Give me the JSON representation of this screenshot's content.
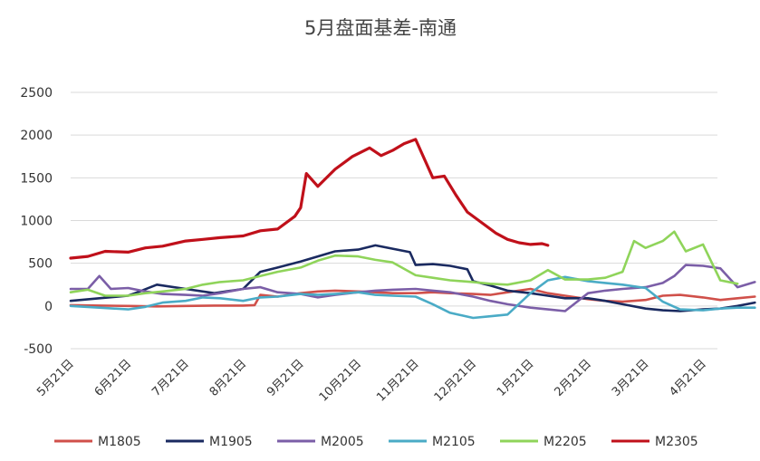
{
  "chart_data": {
    "type": "line",
    "title": "5月盘面基差-南通",
    "xlabel": "",
    "ylabel": "",
    "ylim": [
      -500,
      2500
    ],
    "yticks": [
      -500,
      0,
      500,
      1000,
      1500,
      2000,
      2500
    ],
    "categories": [
      "5月21日",
      "6月21日",
      "7月21日",
      "8月21日",
      "9月21日",
      "10月21日",
      "11月21日",
      "12月21日",
      "1月21日",
      "2月21日",
      "3月21日",
      "4月21日"
    ],
    "grid": "horizontal",
    "legend_position": "bottom",
    "series": [
      {
        "name": "M1805",
        "color": "#d0504a",
        "x": [
          0,
          0.5,
          1,
          1.5,
          2,
          2.5,
          3,
          3.2,
          3.3,
          3.6,
          4,
          4.3,
          4.6,
          5,
          5.3,
          5.6,
          6,
          6.3,
          6.6,
          7,
          7.3,
          7.6,
          8,
          8.3,
          8.6,
          9,
          9.3,
          9.6,
          10,
          10.3,
          10.6,
          11,
          11.3,
          11.6,
          11.9
        ],
        "y": [
          10,
          5,
          0,
          -5,
          0,
          5,
          5,
          10,
          130,
          110,
          150,
          170,
          180,
          170,
          160,
          150,
          150,
          160,
          150,
          140,
          130,
          160,
          200,
          150,
          120,
          80,
          60,
          50,
          70,
          120,
          130,
          100,
          70,
          90,
          110
        ]
      },
      {
        "name": "M1905",
        "color": "#1a2a60",
        "x": [
          0,
          0.5,
          1,
          1.2,
          1.5,
          2,
          2.5,
          3,
          3.3,
          3.6,
          4,
          4.3,
          4.6,
          5,
          5.3,
          5.6,
          5.9,
          6,
          6.3,
          6.6,
          6.9,
          7,
          7.3,
          7.6,
          8,
          8.3,
          8.6,
          9,
          9.3,
          9.6,
          10,
          10.3,
          10.6,
          11,
          11.3,
          11.6,
          11.9
        ],
        "y": [
          60,
          90,
          120,
          170,
          250,
          200,
          150,
          200,
          400,
          450,
          520,
          580,
          640,
          660,
          710,
          670,
          630,
          480,
          490,
          470,
          430,
          290,
          240,
          180,
          150,
          120,
          90,
          90,
          60,
          20,
          -30,
          -50,
          -60,
          -40,
          -30,
          0,
          40
        ]
      },
      {
        "name": "M2005",
        "color": "#7b5ea7",
        "x": [
          0,
          0.3,
          0.5,
          0.7,
          1,
          1.3,
          1.6,
          2,
          2.3,
          2.6,
          3,
          3.3,
          3.6,
          4,
          4.3,
          4.6,
          5,
          5.3,
          5.6,
          6,
          6.3,
          6.6,
          7,
          7.3,
          7.6,
          8,
          8.3,
          8.6,
          9,
          9.3,
          9.6,
          10,
          10.3,
          10.5,
          10.7,
          11,
          11.3,
          11.6,
          11.9
        ],
        "y": [
          200,
          200,
          350,
          200,
          210,
          170,
          140,
          130,
          120,
          150,
          200,
          220,
          160,
          140,
          100,
          130,
          160,
          180,
          190,
          200,
          180,
          160,
          110,
          60,
          20,
          -20,
          -40,
          -60,
          150,
          180,
          200,
          220,
          270,
          350,
          480,
          470,
          440,
          220,
          280
        ]
      },
      {
        "name": "M2105",
        "color": "#4aabc6",
        "x": [
          0,
          0.5,
          1,
          1.3,
          1.6,
          2,
          2.3,
          2.6,
          3,
          3.3,
          3.6,
          4,
          4.3,
          4.6,
          5,
          5.3,
          5.6,
          6,
          6.3,
          6.6,
          7,
          7.3,
          7.6,
          8,
          8.3,
          8.6,
          9,
          9.3,
          9.6,
          10,
          10.3,
          10.6,
          11,
          11.3,
          11.6,
          11.9
        ],
        "y": [
          0,
          -20,
          -40,
          -10,
          40,
          60,
          100,
          90,
          60,
          100,
          110,
          140,
          130,
          140,
          160,
          130,
          120,
          110,
          20,
          -80,
          -140,
          -120,
          -100,
          150,
          300,
          340,
          290,
          270,
          250,
          210,
          50,
          -40,
          -50,
          -30,
          -20,
          -20
        ]
      },
      {
        "name": "M2205",
        "color": "#8fd45a",
        "x": [
          0,
          0.3,
          0.6,
          1,
          1.3,
          1.6,
          2,
          2.3,
          2.6,
          3,
          3.3,
          3.6,
          4,
          4.3,
          4.6,
          5,
          5.3,
          5.6,
          6,
          6.3,
          6.6,
          7,
          7.3,
          7.6,
          8,
          8.3,
          8.6,
          9,
          9.3,
          9.6,
          9.8,
          10,
          10.3,
          10.5,
          10.7,
          11,
          11.3,
          11.6
        ],
        "y": [
          160,
          190,
          120,
          120,
          150,
          170,
          200,
          250,
          280,
          300,
          350,
          400,
          450,
          530,
          590,
          580,
          540,
          510,
          360,
          330,
          300,
          280,
          260,
          250,
          300,
          420,
          310,
          310,
          330,
          400,
          760,
          680,
          760,
          870,
          640,
          720,
          300,
          260
        ]
      },
      {
        "name": "M2305",
        "color": "#c0101a",
        "x": [
          0,
          0.3,
          0.6,
          1,
          1.3,
          1.6,
          2,
          2.3,
          2.6,
          3,
          3.3,
          3.6,
          3.9,
          4,
          4.1,
          4.3,
          4.6,
          4.9,
          5.2,
          5.4,
          5.6,
          5.8,
          6,
          6.3,
          6.5,
          6.7,
          6.9,
          7.1,
          7.4,
          7.6,
          7.8,
          8,
          8.2,
          8.3
        ],
        "y": [
          560,
          580,
          640,
          630,
          680,
          700,
          760,
          780,
          800,
          820,
          880,
          900,
          1050,
          1150,
          1550,
          1400,
          1600,
          1750,
          1850,
          1760,
          1820,
          1900,
          1950,
          1500,
          1520,
          1300,
          1100,
          1000,
          850,
          780,
          740,
          720,
          730,
          710
        ]
      }
    ]
  }
}
